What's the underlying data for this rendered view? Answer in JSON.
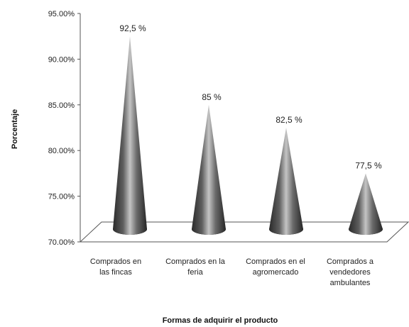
{
  "chart_data": {
    "type": "bar",
    "shape": "cone",
    "categories": [
      [
        "Comprados en",
        "las fincas"
      ],
      [
        "Comprados en la",
        "feria"
      ],
      [
        "Comprados en el",
        "agromercado"
      ],
      [
        "Comprados a",
        "vendedores",
        "ambulantes"
      ]
    ],
    "values": [
      92.5,
      85,
      82.5,
      77.5
    ],
    "data_labels": [
      "92,5 %",
      "85 %",
      "82,5 %",
      "77,5 %"
    ],
    "xlabel": "Formas de adquirir el producto",
    "ylabel": "Porcentaje",
    "ylim": [
      70,
      95
    ],
    "y_ticks": [
      70,
      75,
      80,
      85,
      90,
      95
    ],
    "y_tick_labels": [
      "70.00%",
      "75.00%",
      "80.00%",
      "85.00%",
      "90.00%",
      "95.00%"
    ],
    "grid": false,
    "legend": "none",
    "colors": {
      "cone_dark": "#2e2e2e",
      "cone_light": "#bdbdbd",
      "floor": "#ffffff",
      "axis": "#555555"
    }
  }
}
